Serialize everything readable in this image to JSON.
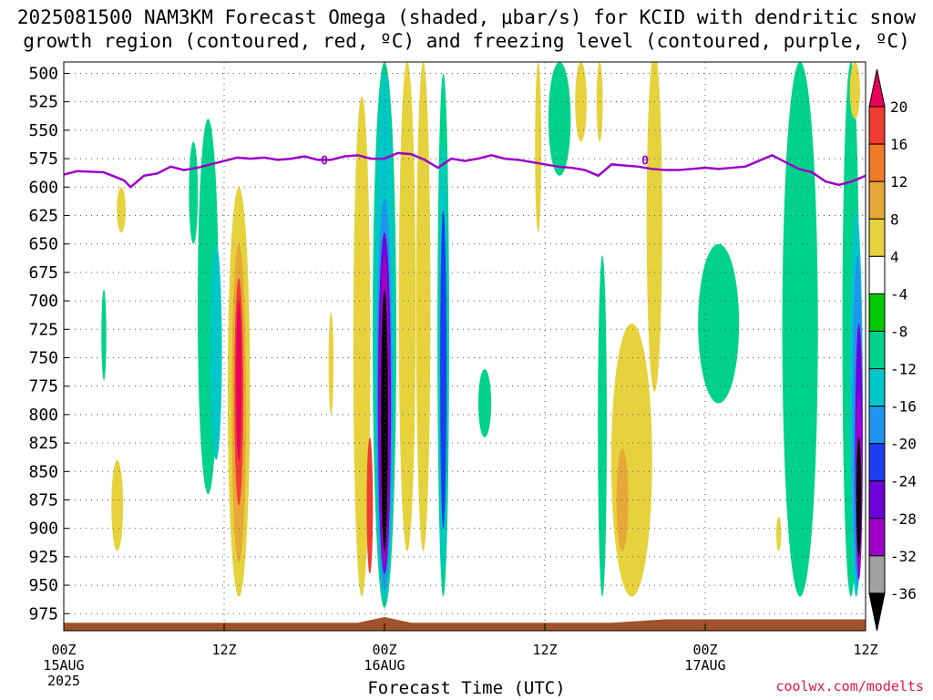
{
  "title_line1": "2025081500 NAM3KM Forecast Omega (shaded, μbar/s) for KCID with dendritic snow",
  "title_line2": "growth region (contoured, red, ºC) and freezing level (contoured, purple, ºC)",
  "credit": "coolwx.com/modelts",
  "chart_data": {
    "type": "heatmap",
    "xlabel": "Forecast Time (UTC)",
    "ylabel": "",
    "x_ticks": [
      {
        "hour": 0,
        "lines": [
          "00Z",
          "15AUG",
          "2025"
        ]
      },
      {
        "hour": 12,
        "lines": [
          "12Z"
        ]
      },
      {
        "hour": 24,
        "lines": [
          "00Z",
          "16AUG"
        ]
      },
      {
        "hour": 36,
        "lines": [
          "12Z"
        ]
      },
      {
        "hour": 48,
        "lines": [
          "00Z",
          "17AUG"
        ]
      },
      {
        "hour": 60,
        "lines": [
          "12Z"
        ]
      }
    ],
    "xlim": [
      0,
      60
    ],
    "y_levels": [
      500,
      525,
      550,
      575,
      600,
      625,
      650,
      675,
      700,
      725,
      750,
      775,
      800,
      825,
      850,
      875,
      900,
      925,
      950,
      975
    ],
    "ylim": [
      490,
      990
    ],
    "colorbar": {
      "labels": [
        "20",
        "16",
        "12",
        "8",
        "4",
        "-4",
        "-8",
        "-12",
        "-16",
        "-20",
        "-24",
        "-28",
        "-32",
        "-36"
      ],
      "colors": [
        "#e8005a",
        "#f03c32",
        "#f07a28",
        "#e6a837",
        "#e6d23c",
        "#ffffff",
        "#00c800",
        "#00d28c",
        "#00c8c8",
        "#1e96f0",
        "#1e3cf0",
        "#6e00dc",
        "#a000c8",
        "#a0a0a0",
        "#000000"
      ]
    },
    "freezing_level": {
      "label": "0",
      "color": "#9a00c8",
      "points": [
        [
          0,
          589
        ],
        [
          1,
          586
        ],
        [
          3,
          587
        ],
        [
          4.5,
          594
        ],
        [
          5,
          600
        ],
        [
          6,
          590
        ],
        [
          7,
          588
        ],
        [
          8,
          582
        ],
        [
          9,
          585
        ],
        [
          10,
          583
        ],
        [
          11,
          580
        ],
        [
          12,
          577
        ],
        [
          13,
          574
        ],
        [
          14,
          575
        ],
        [
          15,
          574
        ],
        [
          16,
          576
        ],
        [
          17,
          575
        ],
        [
          18,
          573
        ],
        [
          19,
          576
        ],
        [
          20,
          576
        ],
        [
          21,
          573
        ],
        [
          22,
          572
        ],
        [
          23,
          575
        ],
        [
          24,
          575
        ],
        [
          25,
          570
        ],
        [
          26,
          571
        ],
        [
          27,
          576
        ],
        [
          28,
          583
        ],
        [
          29,
          575
        ],
        [
          30,
          577
        ],
        [
          31,
          575
        ],
        [
          32,
          572
        ],
        [
          33,
          575
        ],
        [
          34,
          576
        ],
        [
          35,
          578
        ],
        [
          36,
          580
        ],
        [
          37,
          582
        ],
        [
          38,
          583
        ],
        [
          39,
          585
        ],
        [
          40,
          590
        ],
        [
          41,
          580
        ],
        [
          42,
          581
        ],
        [
          43,
          582
        ],
        [
          44,
          584
        ],
        [
          45,
          585
        ],
        [
          46,
          585
        ],
        [
          47,
          584
        ],
        [
          48,
          583
        ],
        [
          49,
          584
        ],
        [
          50,
          583
        ],
        [
          51,
          582
        ],
        [
          52,
          577
        ],
        [
          53,
          572
        ],
        [
          54,
          578
        ],
        [
          55,
          584
        ],
        [
          56,
          587
        ],
        [
          57,
          595
        ],
        [
          58,
          598
        ],
        [
          59,
          595
        ],
        [
          60,
          590
        ]
      ]
    },
    "surface_pressure": {
      "color": "#a0522d",
      "points": [
        [
          0,
          983
        ],
        [
          22,
          983
        ],
        [
          24,
          978
        ],
        [
          26,
          983
        ],
        [
          41,
          983
        ],
        [
          45,
          980
        ],
        [
          60,
          980
        ]
      ]
    },
    "omega_features": [
      {
        "band": "-8",
        "x": 10.8,
        "w": 1.5,
        "y": [
          540,
          870
        ]
      },
      {
        "band": "-12",
        "x": 11.4,
        "w": 0.8,
        "y": [
          650,
          840
        ]
      },
      {
        "band": "4",
        "x": 13.1,
        "w": 1.6,
        "y": [
          600,
          960
        ]
      },
      {
        "band": "8",
        "x": 13.1,
        "w": 1.0,
        "y": [
          650,
          930
        ]
      },
      {
        "band": "16",
        "x": 13.1,
        "w": 0.6,
        "y": [
          680,
          880
        ]
      },
      {
        "band": "20",
        "x": 13.1,
        "w": 0.35,
        "y": [
          700,
          840
        ]
      },
      {
        "band": "-8",
        "x": 9.7,
        "w": 0.6,
        "y": [
          560,
          650
        ]
      },
      {
        "band": "-8",
        "x": 24.0,
        "w": 1.7,
        "y": [
          490,
          970
        ]
      },
      {
        "band": "-12",
        "x": 24.0,
        "w": 1.4,
        "y": [
          500,
          965
        ]
      },
      {
        "band": "-16",
        "x": 24.0,
        "w": 1.1,
        "y": [
          610,
          955
        ]
      },
      {
        "band": "-24",
        "x": 24.0,
        "w": 0.9,
        "y": [
          640,
          940
        ]
      },
      {
        "band": "-28",
        "x": 24.0,
        "w": 0.7,
        "y": [
          660,
          935
        ]
      },
      {
        "band": "-36",
        "x": 24.0,
        "w": 0.45,
        "y": [
          690,
          920
        ]
      },
      {
        "band": "4",
        "x": 25.7,
        "w": 1.2,
        "y": [
          490,
          920
        ]
      },
      {
        "band": "4",
        "x": 22.3,
        "w": 1.2,
        "y": [
          520,
          960
        ]
      },
      {
        "band": "16",
        "x": 22.9,
        "w": 0.4,
        "y": [
          820,
          940
        ]
      },
      {
        "band": "-8",
        "x": 28.4,
        "w": 0.8,
        "y": [
          500,
          960
        ]
      },
      {
        "band": "-12",
        "x": 28.4,
        "w": 0.6,
        "y": [
          560,
          940
        ]
      },
      {
        "band": "-20",
        "x": 28.4,
        "w": 0.4,
        "y": [
          620,
          900
        ]
      },
      {
        "band": "4",
        "x": 26.9,
        "w": 1.0,
        "y": [
          490,
          920
        ]
      },
      {
        "band": "-8",
        "x": 31.5,
        "w": 0.9,
        "y": [
          760,
          820
        ]
      },
      {
        "band": "4",
        "x": 35.5,
        "w": 0.4,
        "y": [
          490,
          640
        ]
      },
      {
        "band": "-8",
        "x": 37.1,
        "w": 1.6,
        "y": [
          490,
          590
        ]
      },
      {
        "band": "4",
        "x": 38.7,
        "w": 0.8,
        "y": [
          490,
          560
        ]
      },
      {
        "band": "-8",
        "x": 40.3,
        "w": 0.6,
        "y": [
          660,
          960
        ]
      },
      {
        "band": "4",
        "x": 42.5,
        "w": 3.0,
        "y": [
          720,
          960
        ]
      },
      {
        "band": "8",
        "x": 41.8,
        "w": 0.8,
        "y": [
          830,
          920
        ]
      },
      {
        "band": "4",
        "x": 44.2,
        "w": 1.1,
        "y": [
          480,
          780
        ]
      },
      {
        "band": "-8",
        "x": 49.0,
        "w": 3.0,
        "y": [
          650,
          790
        ]
      },
      {
        "band": "-8",
        "x": 55.1,
        "w": 2.6,
        "y": [
          490,
          960
        ]
      },
      {
        "band": "-8",
        "x": 58.9,
        "w": 1.2,
        "y": [
          490,
          960
        ]
      },
      {
        "band": "-12",
        "x": 59.3,
        "w": 0.9,
        "y": [
          620,
          960
        ]
      },
      {
        "band": "-16",
        "x": 59.4,
        "w": 0.7,
        "y": [
          660,
          950
        ]
      },
      {
        "band": "-24",
        "x": 59.5,
        "w": 0.5,
        "y": [
          720,
          945
        ]
      },
      {
        "band": "-28",
        "x": 59.5,
        "w": 0.4,
        "y": [
          780,
          940
        ]
      },
      {
        "band": "-36",
        "x": 59.5,
        "w": 0.3,
        "y": [
          820,
          925
        ]
      },
      {
        "band": "4",
        "x": 4.0,
        "w": 0.8,
        "y": [
          840,
          920
        ]
      },
      {
        "band": "4",
        "x": 4.3,
        "w": 0.6,
        "y": [
          600,
          640
        ]
      },
      {
        "band": "-8",
        "x": 3.0,
        "w": 0.3,
        "y": [
          690,
          770
        ]
      },
      {
        "band": "4",
        "x": 20.0,
        "w": 0.3,
        "y": [
          710,
          800
        ]
      },
      {
        "band": "4",
        "x": 53.5,
        "w": 0.3,
        "y": [
          890,
          920
        ]
      },
      {
        "band": "4",
        "x": 59.2,
        "w": 0.7,
        "y": [
          490,
          540
        ]
      },
      {
        "band": "4",
        "x": 40.1,
        "w": 0.4,
        "y": [
          490,
          560
        ]
      }
    ]
  }
}
